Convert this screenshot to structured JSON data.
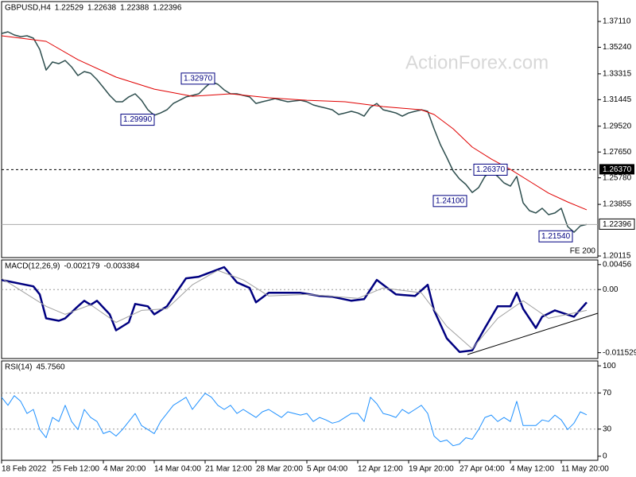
{
  "chart_data": [
    {
      "type": "line",
      "title": "GBPUSD,H4",
      "ohlc": [
        1.22529,
        1.22638,
        1.22388,
        1.22396
      ],
      "watermark": "ActionForex.com",
      "note": "FE 200",
      "categories": [
        "18 Feb 2022",
        null,
        null,
        null,
        null,
        null,
        null,
        null,
        "25 Feb 12:00",
        null,
        null,
        null,
        null,
        null,
        null,
        null,
        "4 Mar 20:00",
        null,
        null,
        null,
        null,
        null,
        null,
        null,
        "14 Mar 04:00",
        null,
        null,
        null,
        null,
        null,
        null,
        null,
        "21 Mar 12:00",
        null,
        null,
        null,
        null,
        null,
        null,
        null,
        "28 Mar 20:00",
        null,
        null,
        null,
        null,
        null,
        null,
        null,
        "5 Apr 04:00",
        null,
        null,
        null,
        null,
        null,
        null,
        null,
        "12 Apr 12:00",
        null,
        null,
        null,
        null,
        null,
        null,
        null,
        "19 Apr 20:00",
        null,
        null,
        null,
        null,
        null,
        null,
        null,
        "27 Apr 04:00",
        null,
        null,
        null,
        null,
        null,
        null,
        null,
        "4 May 12:00",
        null,
        null,
        null,
        null,
        null,
        null,
        null,
        "11 May 20:00",
        null,
        null,
        null,
        null
      ],
      "series": [
        {
          "color": "#2f4f4f",
          "line_width": 1.5,
          "values": [
            1.3624,
            1.3636,
            1.3613,
            1.3601,
            1.3607,
            1.359,
            1.3509,
            1.3359,
            1.3417,
            1.3405,
            1.3428,
            1.3382,
            1.3319,
            1.3348,
            1.3336,
            1.329,
            1.3233,
            1.3175,
            1.3129,
            1.3129,
            1.3164,
            1.3187,
            1.314,
            1.3071,
            1.3031,
            1.3048,
            1.3071,
            1.3117,
            1.314,
            1.3164,
            1.3175,
            1.3187,
            1.3233,
            1.3273,
            1.3256,
            1.3215,
            1.3187,
            1.3187,
            1.3175,
            1.3164,
            1.3117,
            1.3129,
            1.314,
            1.3152,
            1.314,
            1.3129,
            1.3135,
            1.314,
            1.3129,
            1.3106,
            1.3094,
            1.3083,
            1.3071,
            1.3037,
            1.3048,
            1.306,
            1.3048,
            1.3025,
            1.3089,
            1.3117,
            1.3071,
            1.306,
            1.3048,
            1.3025,
            1.3048,
            1.306,
            1.3071,
            1.306,
            1.2933,
            1.2818,
            1.2726,
            1.2628,
            1.257,
            1.253,
            1.2472,
            1.2507,
            1.2588,
            1.2628,
            1.2588,
            1.2541,
            1.2518,
            1.2588,
            1.2397,
            1.234,
            1.2323,
            1.2357,
            1.2311,
            1.2323,
            1.2357,
            1.2225,
            1.2184,
            1.223,
            1.224
          ]
        },
        {
          "color": "#e00000",
          "line_width": 1,
          "x": [
            0,
            7,
            12,
            18,
            24,
            30,
            36,
            42,
            48,
            54,
            60,
            66,
            68,
            71,
            74,
            77,
            80,
            83,
            86,
            89,
            92
          ],
          "values": [
            1.3607,
            1.3567,
            1.3434,
            1.3308,
            1.3221,
            1.3169,
            1.3187,
            1.3158,
            1.314,
            1.3129,
            1.3094,
            1.3071,
            1.3037,
            1.2933,
            1.2801,
            1.2714,
            1.2639,
            1.2553,
            1.2467,
            1.2403,
            1.2346
          ]
        }
      ],
      "level": {
        "value": 1.2637,
        "label": "1.26370"
      },
      "annotations": [
        {
          "value": 1.3297,
          "label": "1.32970"
        },
        {
          "value": 1.2999,
          "label": "1.29990"
        },
        {
          "value": 1.2637,
          "label": "1.26370"
        },
        {
          "value": 1.241,
          "label": "1.24100"
        },
        {
          "value": 1.2154,
          "label": "1.21540"
        }
      ],
      "ylim": [
        1.2,
        1.3855
      ],
      "yticks": [
        {
          "value": 1.3711,
          "label": "1.37110"
        },
        {
          "value": 1.3524,
          "label": "1.35240"
        },
        {
          "value": 1.33315,
          "label": "1.33315"
        },
        {
          "value": 1.31445,
          "label": "1.31445"
        },
        {
          "value": 1.2952,
          "label": "1.29520"
        },
        {
          "value": 1.2765,
          "label": "1.27650"
        },
        {
          "value": 1.2578,
          "label": "1.25780"
        },
        {
          "value": 1.23855,
          "label": "1.23855"
        },
        {
          "value": 1.20115,
          "label": "1.20115"
        }
      ]
    },
    {
      "type": "line",
      "title": "MACD(12,26,9)",
      "readings": [
        -0.002179,
        -0.003384
      ],
      "series": [
        {
          "color": "#000080",
          "line_width": 2.5,
          "x": [
            0,
            5,
            6,
            7,
            9,
            10,
            12,
            13,
            14,
            15,
            17,
            18,
            20,
            21,
            23,
            24,
            26,
            29,
            31,
            32,
            35,
            37,
            39,
            40,
            42,
            45,
            47,
            50,
            52,
            55,
            57,
            59,
            60,
            62,
            65,
            67,
            68,
            70,
            72,
            74,
            76,
            78,
            80,
            81,
            82,
            84,
            85,
            87,
            90,
            92
          ],
          "values": [
            0.00175,
            0.00058,
            -0.00088,
            -0.00526,
            -0.0057,
            -0.00526,
            -0.00307,
            -0.00205,
            -0.00278,
            -0.00205,
            -0.00453,
            -0.00745,
            -0.00599,
            -0.00263,
            -0.00307,
            -0.00453,
            -0.00307,
            0.00204,
            0.00233,
            0.00277,
            0.00409,
            0.00131,
            0.00029,
            -0.00234,
            -0.00059,
            -0.00059,
            -0.00059,
            -0.00117,
            -0.00132,
            -0.00205,
            -0.00175,
            0.00175,
            0.00087,
            -0.00088,
            -0.00117,
            0.00087,
            -0.0038,
            -0.00891,
            -0.01139,
            -0.0111,
            -0.00701,
            -0.00307,
            -0.00307,
            -0.00059,
            -0.00351,
            -0.00701,
            -0.00497,
            -0.0038,
            -0.00497,
            -0.00234
          ]
        },
        {
          "color": "#a0a0a0",
          "line_width": 1,
          "x": [
            0,
            7,
            10,
            14,
            18,
            22,
            26,
            30,
            34,
            38,
            42,
            48,
            56,
            60,
            66,
            70,
            74,
            78,
            82,
            86,
            92
          ],
          "values": [
            0.00204,
            -0.00307,
            -0.00453,
            -0.00278,
            -0.00599,
            -0.0038,
            -0.00351,
            0.00087,
            0.0035,
            0.00175,
            -0.00117,
            -0.00088,
            -0.00161,
            0.00029,
            -0.00059,
            -0.00672,
            -0.01081,
            -0.00526,
            -0.00205,
            -0.00526,
            -0.0038
          ]
        }
      ],
      "levels": [
        0
      ],
      "ylim": [
        -0.0126,
        0.0054
      ],
      "yticks": [
        0.00456,
        {
          "value": 0,
          "label": "0.00"
        },
        -0.011529
      ]
    },
    {
      "type": "line",
      "title": "RSI(14)",
      "reading": {
        "value": 45.756,
        "label": "45.7560"
      },
      "series": [
        {
          "color": "#1e90ff",
          "line_width": 1,
          "values": [
            65.2,
            56.3,
            67.0,
            60.7,
            47.3,
            51.8,
            29.5,
            20.5,
            42.9,
            38.4,
            56.3,
            38.4,
            29.5,
            51.8,
            42.9,
            38.4,
            25.0,
            27.7,
            22.3,
            29.5,
            38.4,
            47.3,
            33.9,
            29.5,
            25.0,
            38.4,
            47.3,
            56.3,
            60.7,
            65.2,
            51.8,
            60.7,
            69.6,
            65.2,
            56.3,
            51.8,
            56.3,
            47.3,
            51.8,
            47.3,
            42.9,
            49.1,
            51.8,
            47.3,
            42.9,
            49.1,
            47.3,
            45.5,
            47.3,
            38.4,
            42.9,
            40.2,
            36.6,
            38.4,
            42.9,
            47.3,
            47.3,
            38.4,
            65.2,
            58.0,
            47.3,
            45.5,
            42.9,
            51.8,
            47.3,
            51.8,
            56.3,
            47.3,
            22.3,
            16.1,
            17.9,
            11.6,
            13.4,
            20.5,
            18.8,
            29.5,
            42.9,
            45.5,
            38.4,
            42.9,
            38.4,
            60.7,
            33.9,
            33.9,
            33.9,
            40.2,
            38.4,
            45.5,
            40.2,
            29.5,
            36.6,
            49.1,
            45.8
          ]
        }
      ],
      "levels": [
        70,
        30
      ],
      "ylim": [
        -4.5,
        105.4
      ],
      "yticks": [
        100,
        70,
        30,
        0
      ]
    }
  ]
}
